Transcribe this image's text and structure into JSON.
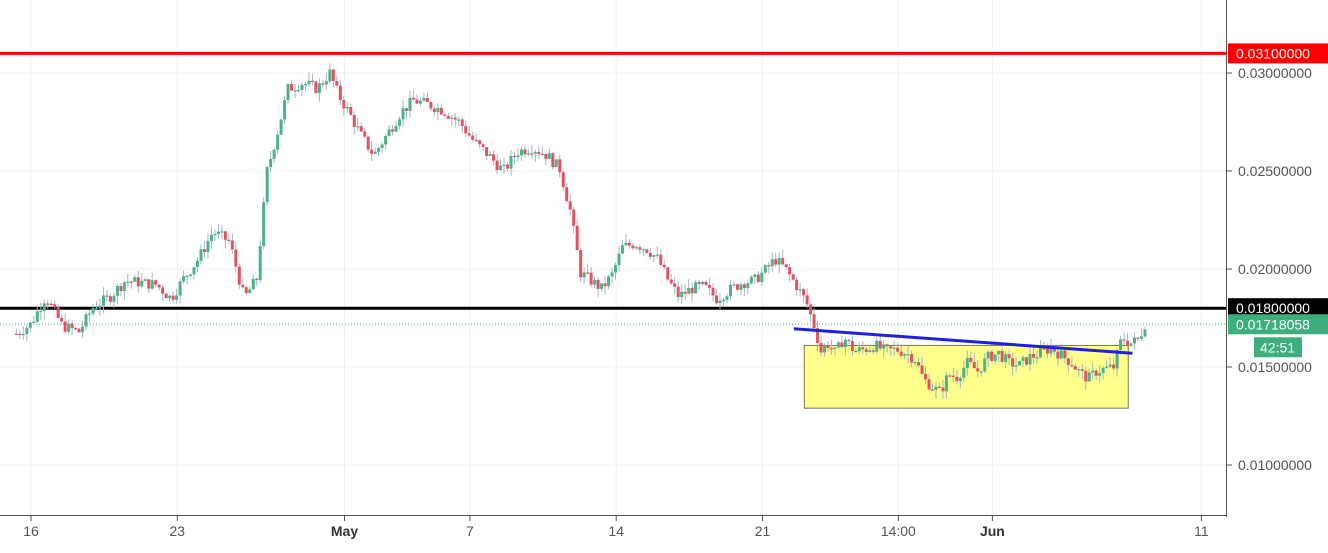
{
  "colors": {
    "up": "#4db286",
    "down": "#e0545f",
    "resistance": "#ff0000",
    "support": "#000000",
    "trendline": "#1f1fe0",
    "box_fill": "#ffff8c",
    "box_stroke": "#777755",
    "grid": "#eef1f4",
    "current_price": "#3fae7f"
  },
  "chart_data": {
    "type": "candlestick",
    "x_ticks": [
      {
        "day": 0,
        "label": "16"
      },
      {
        "day": 7,
        "label": "23"
      },
      {
        "day": 15,
        "label": "May",
        "bold": true
      },
      {
        "day": 21,
        "label": "7"
      },
      {
        "day": 28,
        "label": "14"
      },
      {
        "day": 35,
        "label": "21"
      },
      {
        "day": 41.5,
        "label": "14:00"
      },
      {
        "day": 46,
        "label": "Jun",
        "bold": true
      },
      {
        "day": 56,
        "label": "11"
      }
    ],
    "y_ticks": [
      0.01,
      0.015,
      0.02,
      0.025,
      0.03
    ],
    "y_tick_labels": [
      "0.01000000",
      "0.01500000",
      "0.02000000",
      "0.02500000",
      "0.03000000"
    ],
    "ylim": [
      0.0075,
      0.032
    ],
    "levels": [
      {
        "name": "resistance",
        "value": 0.031,
        "label": "0.03100000"
      },
      {
        "name": "support",
        "value": 0.018,
        "label": "0.01800000"
      }
    ],
    "current_price": {
      "value": 0.01718058,
      "label": "0.01718058",
      "countdown": "42:51"
    },
    "trendline": {
      "start": [
        36.5,
        0.01695
      ],
      "end": [
        52.7,
        0.0157
      ]
    },
    "box": {
      "x0": 37,
      "x1": 52.5,
      "y0": 0.0129,
      "y1": 0.0161
    },
    "price_path": [
      [
        -0.7,
        0.0167
      ],
      [
        0.0,
        0.0172
      ],
      [
        0.7,
        0.0186
      ],
      [
        1.5,
        0.0171
      ],
      [
        2.3,
        0.0168
      ],
      [
        3.0,
        0.0181
      ],
      [
        3.7,
        0.0185
      ],
      [
        4.5,
        0.0194
      ],
      [
        5.3,
        0.0193
      ],
      [
        6.0,
        0.0192
      ],
      [
        6.7,
        0.0185
      ],
      [
        7.3,
        0.0195
      ],
      [
        8.0,
        0.0205
      ],
      [
        8.7,
        0.0219
      ],
      [
        9.5,
        0.0214
      ],
      [
        10.2,
        0.0185
      ],
      [
        10.8,
        0.0195
      ],
      [
        11.3,
        0.025
      ],
      [
        11.8,
        0.027
      ],
      [
        12.3,
        0.0292
      ],
      [
        13.0,
        0.0295
      ],
      [
        13.7,
        0.0292
      ],
      [
        14.3,
        0.03
      ],
      [
        14.7,
        0.0289
      ],
      [
        15.2,
        0.028
      ],
      [
        15.8,
        0.0268
      ],
      [
        16.4,
        0.0258
      ],
      [
        17.0,
        0.0268
      ],
      [
        17.7,
        0.028
      ],
      [
        18.3,
        0.0286
      ],
      [
        19.0,
        0.0284
      ],
      [
        19.7,
        0.0281
      ],
      [
        20.5,
        0.0275
      ],
      [
        21.2,
        0.0265
      ],
      [
        21.9,
        0.0258
      ],
      [
        22.6,
        0.025
      ],
      [
        23.3,
        0.026
      ],
      [
        24.0,
        0.0262
      ],
      [
        24.7,
        0.0258
      ],
      [
        25.3,
        0.0251
      ],
      [
        25.8,
        0.023
      ],
      [
        26.3,
        0.0198
      ],
      [
        26.8,
        0.0194
      ],
      [
        27.3,
        0.019
      ],
      [
        27.8,
        0.0197
      ],
      [
        28.3,
        0.0211
      ],
      [
        28.9,
        0.0213
      ],
      [
        29.5,
        0.021
      ],
      [
        30.0,
        0.0205
      ],
      [
        30.5,
        0.0194
      ],
      [
        31.0,
        0.0186
      ],
      [
        31.6,
        0.019
      ],
      [
        32.2,
        0.0191
      ],
      [
        32.8,
        0.0185
      ],
      [
        33.4,
        0.0189
      ],
      [
        34.0,
        0.0193
      ],
      [
        34.6,
        0.0194
      ],
      [
        35.1,
        0.0199
      ],
      [
        35.6,
        0.0205
      ],
      [
        36.1,
        0.02
      ],
      [
        36.6,
        0.0192
      ],
      [
        37.1,
        0.0183
      ],
      [
        37.5,
        0.017
      ],
      [
        37.8,
        0.0158
      ],
      [
        38.1,
        0.0162
      ],
      [
        38.5,
        0.0157
      ],
      [
        38.9,
        0.0165
      ],
      [
        39.4,
        0.0158
      ],
      [
        39.9,
        0.0159
      ],
      [
        40.4,
        0.0161
      ],
      [
        40.9,
        0.0158
      ],
      [
        41.4,
        0.0159
      ],
      [
        41.9,
        0.0157
      ],
      [
        42.3,
        0.0154
      ],
      [
        42.7,
        0.0144
      ],
      [
        43.1,
        0.014
      ],
      [
        43.5,
        0.0137
      ],
      [
        43.9,
        0.0146
      ],
      [
        44.3,
        0.0145
      ],
      [
        44.8,
        0.0152
      ],
      [
        45.3,
        0.0148
      ],
      [
        45.8,
        0.0155
      ],
      [
        46.3,
        0.0157
      ],
      [
        46.8,
        0.0152
      ],
      [
        47.3,
        0.0151
      ],
      [
        47.8,
        0.0155
      ],
      [
        48.3,
        0.0157
      ],
      [
        48.8,
        0.016
      ],
      [
        49.3,
        0.0156
      ],
      [
        49.8,
        0.0152
      ],
      [
        50.2,
        0.0147
      ],
      [
        50.6,
        0.0144
      ],
      [
        51.0,
        0.0148
      ],
      [
        51.4,
        0.0149
      ],
      [
        51.8,
        0.015
      ],
      [
        52.2,
        0.0165
      ],
      [
        52.6,
        0.0162
      ],
      [
        53.0,
        0.0164
      ],
      [
        53.3,
        0.0172
      ]
    ]
  }
}
